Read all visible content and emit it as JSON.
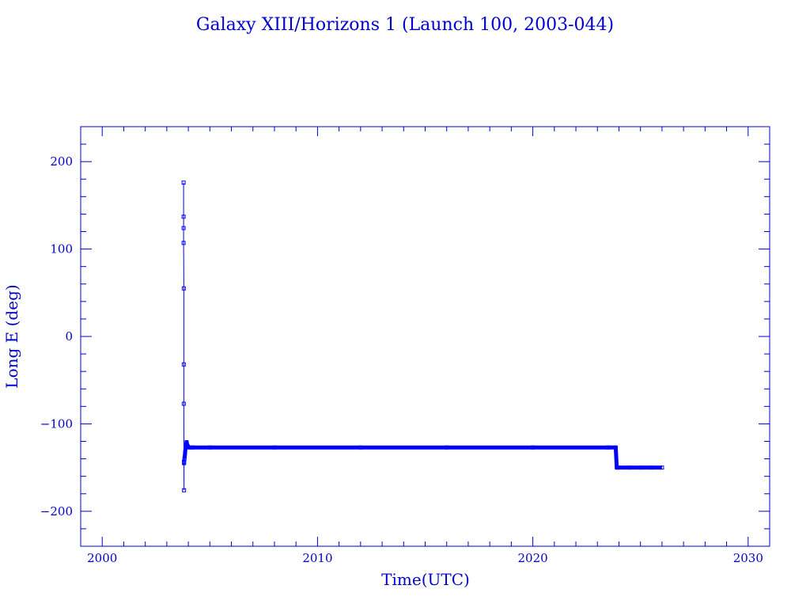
{
  "colors": {
    "primary": "#0000cc",
    "series": "#0000ff",
    "background": "#ffffff"
  },
  "chart_data": {
    "type": "line",
    "title": "Galaxy XIII/Horizons 1 (Launch 100, 2003-044)",
    "xlabel": "Time(UTC)",
    "ylabel": "Long E (deg)",
    "xlim": [
      1999,
      2031
    ],
    "ylim": [
      -240,
      240
    ],
    "x_ticks": [
      2000,
      2010,
      2020,
      2030
    ],
    "y_ticks": [
      200,
      100,
      0,
      -100,
      -200
    ],
    "x_tick_labels": [
      "2000",
      "2010",
      "2020",
      "2030"
    ],
    "y_tick_labels": [
      "200",
      "100",
      "0",
      "−100",
      "−200"
    ],
    "grid": false,
    "series": [
      {
        "x": [
          2003.78,
          2003.78,
          2003.78,
          2003.78,
          2003.79,
          2003.79,
          2003.79,
          2003.8,
          2003.8,
          2003.8,
          2003.8,
          2003.82,
          2003.85,
          2003.88,
          2003.92,
          2003.98,
          2004.05,
          2004.2,
          2005.0,
          2008.0,
          2012.0,
          2016.0,
          2020.0,
          2023.5,
          2023.85,
          2023.9,
          2024.0,
          2024.5,
          2025.0,
          2025.5,
          2026.0
        ],
        "y": [
          176,
          137,
          124,
          107,
          55,
          -32,
          -77,
          -176,
          -144,
          -143,
          -145,
          -140,
          -133,
          -125,
          -121,
          -126,
          -127,
          -127,
          -127,
          -127,
          -127,
          -127,
          -127,
          -127,
          -127,
          -150,
          -150,
          -150,
          -150,
          -150,
          -150
        ]
      }
    ]
  }
}
